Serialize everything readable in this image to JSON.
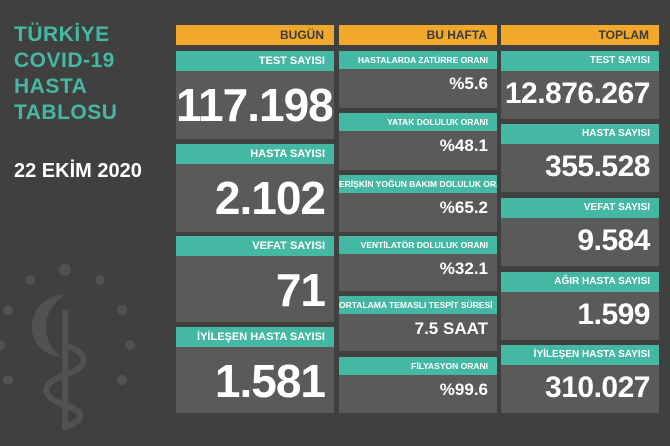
{
  "title_lines": [
    "TÜRKİYE",
    "COVID-19",
    "HASTA",
    "TABLOSU"
  ],
  "date": "22 EKİM 2020",
  "colors": {
    "background": "#404040",
    "header": "#f2a82b",
    "bar": "#45b8a3",
    "card": "#5a5a5a"
  },
  "columns": {
    "today": {
      "header": "BUGÜN",
      "cards": [
        {
          "label": "TEST SAYISI",
          "value": "117.198"
        },
        {
          "label": "HASTA SAYISI",
          "value": "2.102"
        },
        {
          "label": "VEFAT SAYISI",
          "value": "71"
        },
        {
          "label": "İYİLEŞEN HASTA SAYISI",
          "value": "1.581"
        }
      ]
    },
    "week": {
      "header": "BU HAFTA",
      "cards": [
        {
          "label": "HASTALARDA ZATÜRRE ORANI",
          "value": "%5.6"
        },
        {
          "label": "YATAK DOLULUK ORANI",
          "value": "%48.1"
        },
        {
          "label": "ERİŞKİN YOĞUN BAKIM DOLULUK ORANI",
          "value": "%65.2"
        },
        {
          "label": "VENTİLATÖR DOLULUK ORANI",
          "value": "%32.1"
        },
        {
          "label": "ORTALAMA TEMASLI TESPİT SÜRESİ",
          "value": "7.5 SAAT"
        },
        {
          "label": "FİLYASYON ORANI",
          "value": "%99.6"
        }
      ]
    },
    "total": {
      "header": "TOPLAM",
      "cards": [
        {
          "label": "TEST SAYISI",
          "value": "12.876.267"
        },
        {
          "label": "HASTA SAYISI",
          "value": "355.528"
        },
        {
          "label": "VEFAT SAYISI",
          "value": "9.584"
        },
        {
          "label": "AĞIR HASTA SAYISI",
          "value": "1.599"
        },
        {
          "label": "İYİLEŞEN HASTA SAYISI",
          "value": "310.027"
        }
      ]
    }
  }
}
